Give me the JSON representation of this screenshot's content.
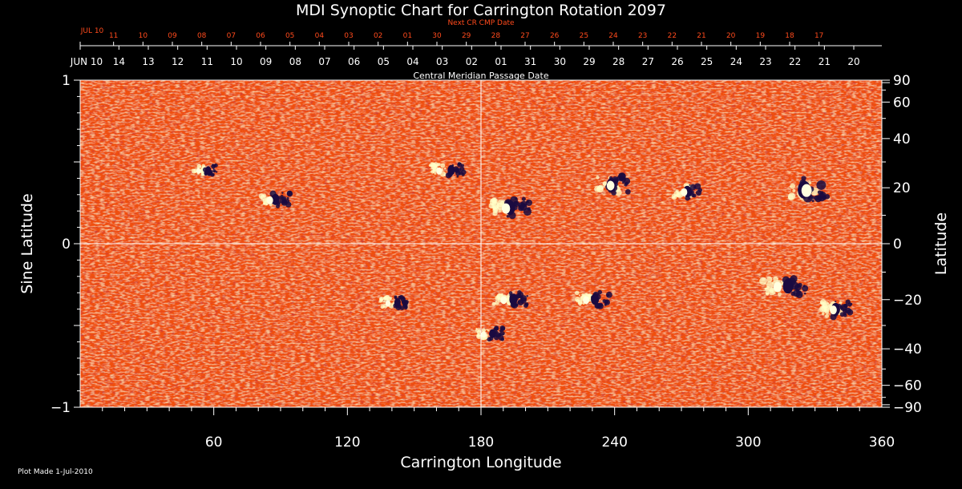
{
  "chart_data": {
    "type": "heatmap",
    "title": "MDI Synoptic Chart for Carrington Rotation 2097",
    "xlabel": "Carrington Longitude",
    "ylabel_left": "Sine Latitude",
    "ylabel_right": "Latitude",
    "top_axis_label": "Central Meridian Passage Date",
    "next_cr_label": "Next CR CMP Date",
    "plot_made": "Plot Made  1-Jul-2010",
    "xlim": [
      0,
      360
    ],
    "ylim": [
      -1,
      1
    ],
    "x_ticks": [
      60,
      120,
      180,
      240,
      300,
      360
    ],
    "y_ticks_left": [
      {
        "value": 1,
        "label": "1"
      },
      {
        "value": 0,
        "label": "0"
      },
      {
        "value": -1,
        "label": "−1"
      }
    ],
    "y_ticks_right": [
      {
        "value": 90,
        "label": "90"
      },
      {
        "value": 60,
        "label": "60"
      },
      {
        "value": 40,
        "label": "40"
      },
      {
        "value": 20,
        "label": "20"
      },
      {
        "value": 0,
        "label": "0"
      },
      {
        "value": -20,
        "label": "−20"
      },
      {
        "value": -40,
        "label": "−40"
      },
      {
        "value": -60,
        "label": "−60"
      },
      {
        "value": -90,
        "label": "−90"
      }
    ],
    "cmp_dates": [
      {
        "lon": 0,
        "label": "JUN 10"
      },
      {
        "lon": 17.4,
        "label": "14"
      },
      {
        "lon": 30.6,
        "label": "13"
      },
      {
        "lon": 43.8,
        "label": "12"
      },
      {
        "lon": 57.0,
        "label": "11"
      },
      {
        "lon": 70.2,
        "label": "10"
      },
      {
        "lon": 83.4,
        "label": "09"
      },
      {
        "lon": 96.6,
        "label": "08"
      },
      {
        "lon": 109.8,
        "label": "07"
      },
      {
        "lon": 123.0,
        "label": "06"
      },
      {
        "lon": 136.2,
        "label": "05"
      },
      {
        "lon": 149.4,
        "label": "04"
      },
      {
        "lon": 162.6,
        "label": "03"
      },
      {
        "lon": 175.8,
        "label": "02"
      },
      {
        "lon": 189.0,
        "label": "01"
      },
      {
        "lon": 202.2,
        "label": "31"
      },
      {
        "lon": 215.4,
        "label": "30"
      },
      {
        "lon": 228.6,
        "label": "29"
      },
      {
        "lon": 241.8,
        "label": "28"
      },
      {
        "lon": 255.0,
        "label": "27"
      },
      {
        "lon": 268.2,
        "label": "26"
      },
      {
        "lon": 281.4,
        "label": "25"
      },
      {
        "lon": 294.6,
        "label": "24"
      },
      {
        "lon": 307.8,
        "label": "23"
      },
      {
        "lon": 321.0,
        "label": "22"
      },
      {
        "lon": 334.2,
        "label": "21"
      },
      {
        "lon": 347.4,
        "label": "20"
      }
    ],
    "next_cr_dates": [
      {
        "lon": 0,
        "label": "JUL 10"
      },
      {
        "lon": 15,
        "label": "11"
      },
      {
        "lon": 28.2,
        "label": "10"
      },
      {
        "lon": 41.4,
        "label": "09"
      },
      {
        "lon": 54.6,
        "label": "08"
      },
      {
        "lon": 67.8,
        "label": "07"
      },
      {
        "lon": 81.0,
        "label": "06"
      },
      {
        "lon": 94.2,
        "label": "05"
      },
      {
        "lon": 107.4,
        "label": "04"
      },
      {
        "lon": 120.6,
        "label": "03"
      },
      {
        "lon": 133.8,
        "label": "02"
      },
      {
        "lon": 147.0,
        "label": "01"
      },
      {
        "lon": 160.2,
        "label": "30"
      },
      {
        "lon": 173.4,
        "label": "29"
      },
      {
        "lon": 186.6,
        "label": "28"
      },
      {
        "lon": 199.8,
        "label": "27"
      },
      {
        "lon": 213.0,
        "label": "26"
      },
      {
        "lon": 226.2,
        "label": "25"
      },
      {
        "lon": 239.4,
        "label": "24"
      },
      {
        "lon": 252.6,
        "label": "23"
      },
      {
        "lon": 265.8,
        "label": "22"
      },
      {
        "lon": 279.0,
        "label": "21"
      },
      {
        "lon": 292.2,
        "label": "20"
      },
      {
        "lon": 305.4,
        "label": "19"
      },
      {
        "lon": 318.6,
        "label": "18"
      },
      {
        "lon": 331.8,
        "label": "17"
      }
    ],
    "colors": {
      "background_field": "#f05010",
      "positive_flux": "#ffffc8",
      "negative_flux": "#1a0a40",
      "axis": "#ffffff",
      "next_cr": "#ff4a1c"
    },
    "active_regions": [
      {
        "lon": 87,
        "sinlat": 0.27,
        "pos_offset": -2,
        "size": 1.0
      },
      {
        "lon": 193,
        "sinlat": 0.22,
        "pos_offset": -4,
        "size": 1.3
      },
      {
        "lon": 240,
        "sinlat": 0.36,
        "pos_offset": -8,
        "size": 1.2
      },
      {
        "lon": 273,
        "sinlat": 0.32,
        "pos_offset": -5,
        "size": 1.0
      },
      {
        "lon": 328,
        "sinlat": 0.33,
        "pos_offset": -12,
        "size": 1.6
      },
      {
        "lon": 163,
        "sinlat": 0.45,
        "pos_offset": 6,
        "size": 0.9
      },
      {
        "lon": 192,
        "sinlat": -0.34,
        "pos_offset": 3,
        "size": 1.0
      },
      {
        "lon": 229,
        "sinlat": -0.34,
        "pos_offset": 2,
        "size": 1.0
      },
      {
        "lon": 315,
        "sinlat": -0.26,
        "pos_offset": 4,
        "size": 1.3
      },
      {
        "lon": 183,
        "sinlat": -0.55,
        "pos_offset": 2,
        "size": 0.8
      },
      {
        "lon": 340,
        "sinlat": -0.4,
        "pos_offset": -6,
        "size": 1.1
      },
      {
        "lon": 140,
        "sinlat": -0.36,
        "pos_offset": 3,
        "size": 0.8
      },
      {
        "lon": 55,
        "sinlat": 0.45,
        "pos_offset": 3,
        "size": 0.7
      }
    ]
  }
}
